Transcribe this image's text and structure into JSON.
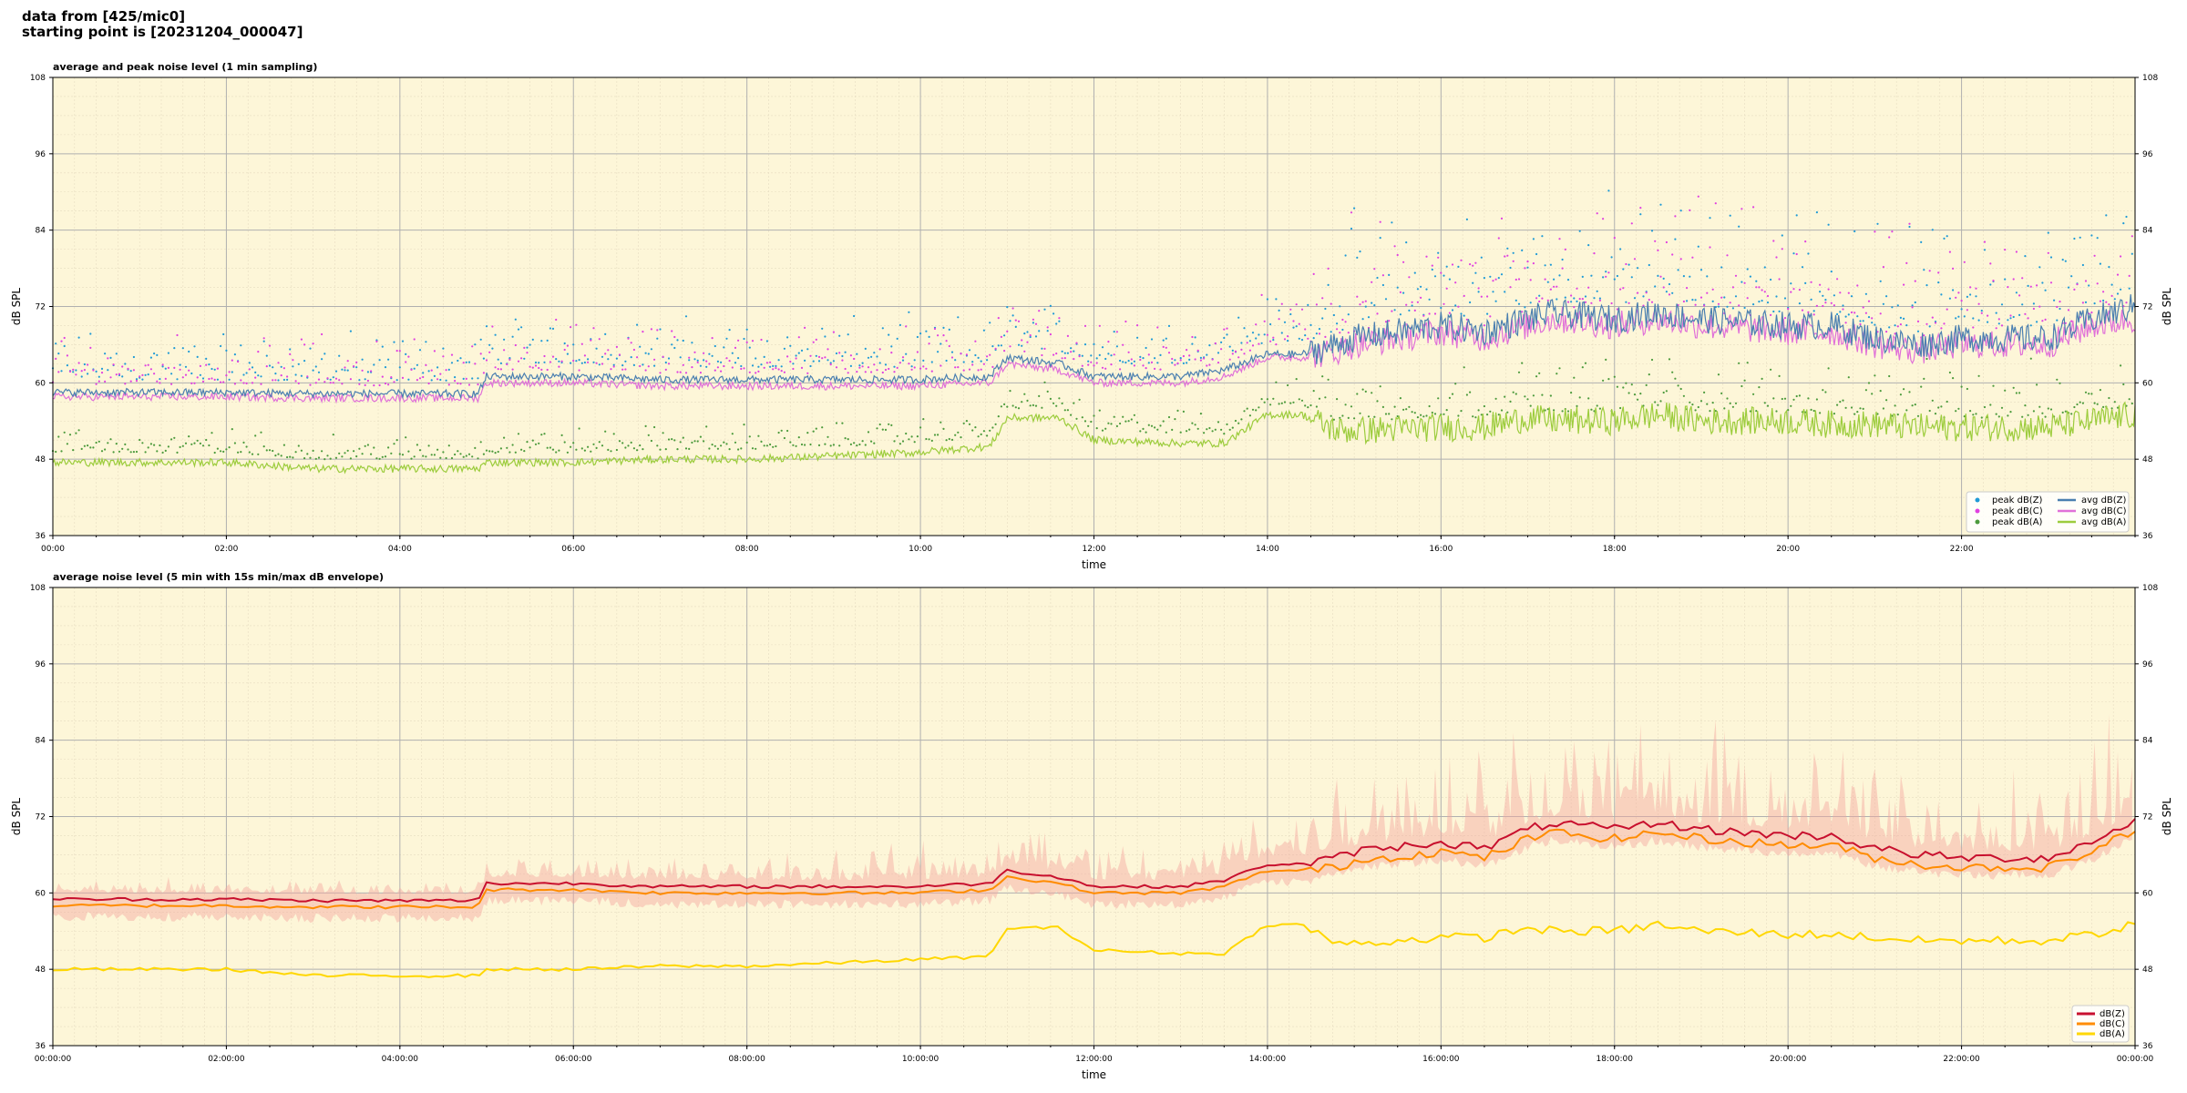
{
  "header": {
    "line1": "data from [425/mic0]",
    "line2": "starting point is [20231204_000047]"
  },
  "colors": {
    "plot_bg": "#fdf6d8",
    "peak_z": "#1f9ad6",
    "peak_c": "#e040e0",
    "peak_a": "#4c9a3c",
    "avg_z": "#4a7fb0",
    "avg_c": "#e070d8",
    "avg_a": "#9ccc3c",
    "db_z": "#c8102e",
    "db_c": "#ff8c00",
    "db_a": "#ffd700",
    "envelope": "#f4a7a0"
  },
  "chart_data": [
    {
      "type": "scatter+line",
      "title": "average and peak noise level (1 min sampling)",
      "xlabel": "time",
      "ylabel": "dB SPL",
      "ylabel_right": "dB SPL",
      "xlim_hours": [
        0,
        24
      ],
      "ylim": [
        36,
        108
      ],
      "yticks": [
        36,
        48,
        60,
        72,
        84,
        96,
        108
      ],
      "xtick_labels": [
        "00:00",
        "02:00",
        "04:00",
        "06:00",
        "08:00",
        "10:00",
        "12:00",
        "14:00",
        "16:00",
        "18:00",
        "20:00",
        "22:00"
      ],
      "grid": true,
      "legend_placement": "lower-right",
      "legend_columns": [
        [
          "peak dB(Z)",
          "peak dB(C)",
          "peak dB(A)"
        ],
        [
          "avg dB(Z)",
          "avg dB(C)",
          "avg dB(A)"
        ]
      ],
      "anchors_hours": [
        0,
        1,
        2,
        3,
        4,
        4.9,
        5.0,
        6,
        7,
        8,
        9,
        9.9,
        10.8,
        11.0,
        11.6,
        12,
        13,
        13.5,
        14.0,
        14.4,
        14.8,
        15,
        16,
        16.5,
        17.0,
        17.3,
        18,
        18.5,
        19,
        20,
        20.5,
        21,
        21.5,
        22,
        23,
        23.5,
        24
      ],
      "series": [
        {
          "name": "avg dB(Z)",
          "kind": "line",
          "values": [
            58.5,
            58.5,
            58.5,
            58.3,
            58.3,
            58.3,
            61,
            61,
            60.5,
            60.5,
            60.5,
            60.5,
            61,
            64,
            63,
            61,
            61,
            62,
            64.5,
            64.5,
            66,
            67,
            69,
            68,
            70,
            71,
            70,
            71,
            70,
            69,
            69,
            67,
            66,
            67,
            67,
            70,
            72
          ]
        },
        {
          "name": "avg dB(C)",
          "kind": "line",
          "values": [
            57.8,
            57.8,
            57.8,
            57.6,
            57.6,
            57.6,
            60,
            60,
            59.5,
            59.5,
            59.5,
            59.5,
            60,
            63,
            62,
            60,
            60,
            61,
            64,
            64,
            65,
            66,
            68,
            67,
            69,
            70,
            69,
            70,
            69,
            68,
            68,
            66,
            65,
            66,
            66,
            69,
            70
          ]
        },
        {
          "name": "avg dB(A)",
          "kind": "line",
          "values": [
            47.5,
            47.5,
            47.5,
            46.5,
            46.5,
            46.5,
            47.5,
            47.5,
            48,
            48,
            48.5,
            49,
            50,
            54.5,
            54.5,
            51,
            50.5,
            50.5,
            55,
            55,
            52.5,
            52.5,
            53,
            53,
            54.5,
            54,
            54,
            55,
            54,
            54,
            53.5,
            53.5,
            53,
            53,
            53,
            54,
            55
          ]
        },
        {
          "name": "peak dB(Z)",
          "kind": "scatter",
          "offset_db": 2,
          "spread_db": 6
        },
        {
          "name": "peak dB(C)",
          "kind": "scatter",
          "offset_db": 2,
          "spread_db": 6
        },
        {
          "name": "peak dB(A)",
          "kind": "scatter",
          "offset_db": 1.5,
          "spread_db": 3
        }
      ]
    },
    {
      "type": "line+band",
      "title": "average noise level (5 min with 15s min/max dB envelope)",
      "xlabel": "time",
      "ylabel": "dB SPL",
      "ylabel_right": "dB SPL",
      "xlim_hours": [
        0,
        24
      ],
      "ylim": [
        36,
        108
      ],
      "yticks": [
        36,
        48,
        60,
        72,
        84,
        96,
        108
      ],
      "xtick_labels": [
        "00:00:00",
        "02:00:00",
        "04:00:00",
        "06:00:00",
        "08:00:00",
        "10:00:00",
        "12:00:00",
        "14:00:00",
        "16:00:00",
        "18:00:00",
        "20:00:00",
        "22:00:00",
        "00:00:00"
      ],
      "grid": true,
      "legend_placement": "lower-right",
      "legend": [
        "dB(Z)",
        "dB(C)",
        "dB(A)"
      ],
      "anchors_hours": [
        0,
        1,
        2,
        3,
        4,
        4.9,
        5.0,
        6,
        7,
        8,
        9,
        9.9,
        10.8,
        11.0,
        11.6,
        12,
        13,
        13.5,
        14.0,
        14.4,
        14.8,
        15,
        16,
        16.5,
        17.0,
        17.3,
        18,
        18.5,
        19,
        20,
        20.5,
        21,
        21.5,
        22,
        23,
        23.5,
        24
      ],
      "series": [
        {
          "name": "dB(Z)",
          "values": [
            59,
            59,
            59,
            58.8,
            58.8,
            58.8,
            61.5,
            61.5,
            61,
            61,
            61,
            61,
            61.5,
            63.5,
            62.5,
            61,
            61,
            62,
            64.5,
            64.5,
            65.5,
            66.5,
            68,
            67,
            70,
            71,
            70,
            71,
            70,
            69,
            69,
            67,
            66,
            65.5,
            65.5,
            68,
            71.5
          ]
        },
        {
          "name": "dB(C)",
          "values": [
            58,
            58,
            58,
            57.8,
            57.8,
            57.8,
            60.5,
            60.5,
            60,
            60,
            60,
            60,
            60.5,
            62.5,
            61.5,
            60,
            60,
            61,
            63.5,
            63.5,
            64,
            65,
            66.5,
            65.5,
            68.5,
            69.5,
            68.5,
            69.5,
            68.5,
            67.5,
            67.5,
            65.5,
            64.5,
            64,
            64,
            66.5,
            70
          ]
        },
        {
          "name": "dB(A)",
          "values": [
            48,
            48,
            48,
            47,
            47,
            47,
            48,
            48,
            48.5,
            48.5,
            49,
            49.5,
            50,
            54.5,
            54.5,
            51,
            50.5,
            50.5,
            55,
            55,
            52,
            52,
            53,
            53,
            54.5,
            54,
            54,
            55,
            54,
            53.5,
            53.5,
            53,
            52.5,
            52.5,
            52.5,
            53.5,
            55
          ]
        },
        {
          "name": "envelope dB(Z) min/max",
          "kind": "band",
          "low_offset_db": -2,
          "high_anchors_db": [
            2,
            2,
            2,
            2,
            2,
            2,
            3,
            3,
            3,
            3,
            4,
            5,
            6,
            6,
            6,
            5,
            5,
            6,
            8,
            8,
            10,
            12,
            14,
            14,
            16,
            15,
            15,
            14,
            14,
            12,
            12,
            11,
            10,
            10,
            10,
            12,
            14
          ]
        }
      ]
    }
  ]
}
